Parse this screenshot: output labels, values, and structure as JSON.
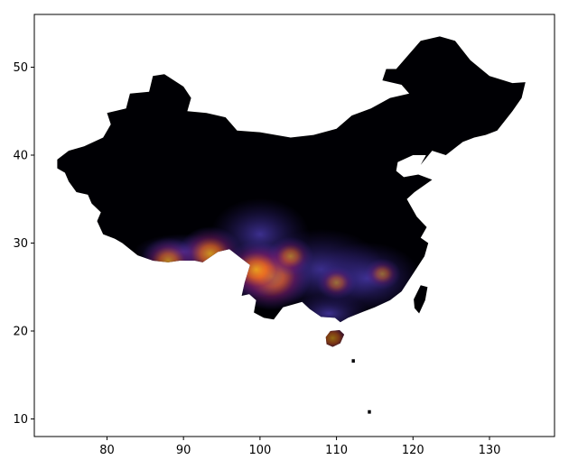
{
  "chart_data": {
    "type": "heatmap",
    "title": "",
    "xlabel": "",
    "ylabel": "",
    "xlim": [
      70.5,
      138.5
    ],
    "ylim": [
      8,
      56
    ],
    "x_ticks": [
      "80",
      "90",
      "100",
      "110",
      "120",
      "130"
    ],
    "y_ticks": [
      "10",
      "20",
      "30",
      "40",
      "50"
    ],
    "grid": false,
    "legend": "none",
    "colormap": [
      "#000004",
      "#1b0c41",
      "#4a0c6b",
      "#3b2a9e",
      "#781c6d",
      "#bc3754",
      "#ed6925",
      "#fbb61a"
    ],
    "background_color": "#000004",
    "hotspots": [
      {
        "lon": 101.5,
        "lat": 26.2,
        "intensity": 1.0
      },
      {
        "lon": 99.5,
        "lat": 27.0,
        "intensity": 0.8
      },
      {
        "lon": 93.5,
        "lat": 28.8,
        "intensity": 0.75
      },
      {
        "lon": 88.0,
        "lat": 28.0,
        "intensity": 0.6
      },
      {
        "lon": 104.0,
        "lat": 28.5,
        "intensity": 0.45
      },
      {
        "lon": 110.0,
        "lat": 25.5,
        "intensity": 0.35
      },
      {
        "lon": 116.0,
        "lat": 26.5,
        "intensity": 0.3
      },
      {
        "lon": 109.5,
        "lat": 19.2,
        "intensity": 0.4
      }
    ]
  }
}
